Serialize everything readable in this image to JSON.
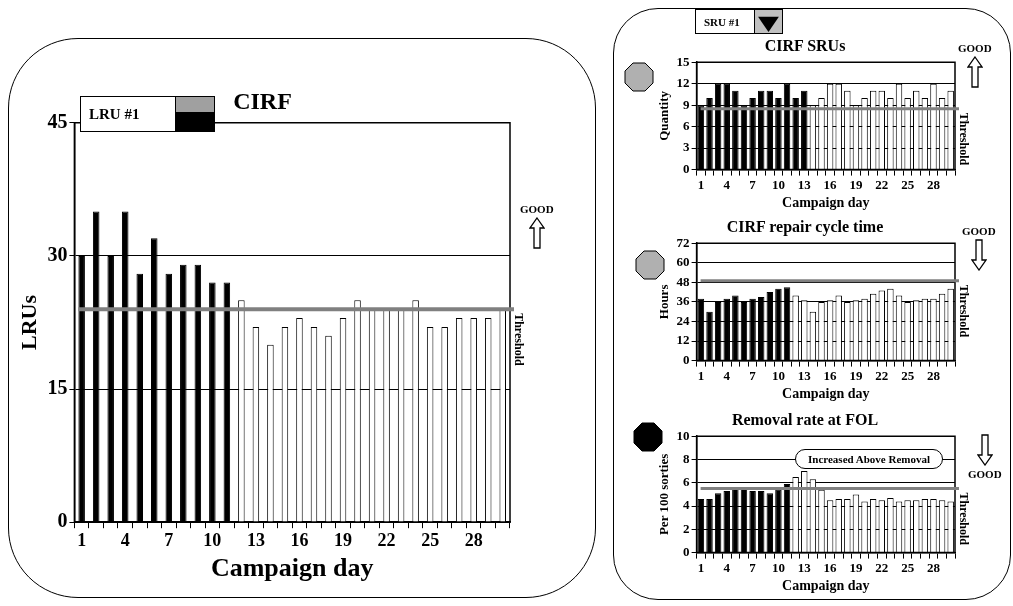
{
  "chart_data": [
    {
      "type": "bar",
      "title": "CIRF",
      "xlabel": "Campaign day",
      "ylabel": "LRUs",
      "annotations": [
        "LRU #1",
        "GOOD"
      ],
      "categories": [
        "1",
        null,
        null,
        "4",
        null,
        null,
        "7",
        null,
        null,
        "10",
        null,
        null,
        "13",
        null,
        null,
        "16",
        null,
        null,
        "19",
        null,
        null,
        "22",
        null,
        null,
        "25",
        null,
        null,
        "28",
        null,
        null
      ],
      "series": [
        {
          "color": "#000000",
          "values": [
            30,
            35,
            30,
            35,
            28,
            32,
            28,
            29,
            29,
            27,
            27,
            null,
            null,
            null,
            null,
            null,
            null,
            null,
            null,
            null,
            null,
            null,
            null,
            null,
            null,
            null,
            null,
            null,
            null,
            null
          ]
        },
        {
          "color": "#ffffff",
          "values": [
            null,
            null,
            null,
            null,
            null,
            null,
            null,
            null,
            null,
            null,
            null,
            25,
            22,
            20,
            22,
            23,
            22,
            21,
            23,
            25,
            24,
            24,
            24,
            25,
            22,
            22,
            23,
            23,
            23,
            24
          ]
        }
      ],
      "ylim": [
        0,
        45
      ],
      "yticks": [
        0,
        15,
        30,
        45
      ],
      "grid": "y",
      "ref_lines": [
        {
          "axis": "y",
          "value": 24,
          "label": "Threshold",
          "color": "#808080"
        }
      ]
    },
    {
      "type": "bar",
      "title": "CIRF SRUs",
      "xlabel": "Campaign day",
      "ylabel": "Quantity",
      "annotations": [
        "SRU #1",
        "GOOD"
      ],
      "categories": [
        "1",
        null,
        null,
        "4",
        null,
        null,
        "7",
        null,
        null,
        "10",
        null,
        null,
        "13",
        null,
        null,
        "16",
        null,
        null,
        "19",
        null,
        null,
        "22",
        null,
        null,
        "25",
        null,
        null,
        "28",
        null,
        null
      ],
      "series": [
        {
          "color": "#000000",
          "values": [
            9,
            10,
            12,
            12,
            11,
            9,
            10,
            11,
            11,
            10,
            12,
            10,
            11,
            null,
            null,
            null,
            null,
            null,
            null,
            null,
            null,
            null,
            null,
            null,
            null,
            null,
            null,
            null,
            null,
            null
          ]
        },
        {
          "color": "#ffffff",
          "values": [
            null,
            null,
            null,
            null,
            null,
            null,
            null,
            null,
            null,
            null,
            null,
            null,
            null,
            9,
            10,
            12,
            12,
            11,
            9,
            10,
            11,
            11,
            10,
            12,
            10,
            11,
            10,
            12,
            10,
            11
          ]
        }
      ],
      "ylim": [
        0,
        15
      ],
      "yticks": [
        0,
        3,
        6,
        9,
        12,
        15
      ],
      "grid": "y",
      "ref_lines": [
        {
          "axis": "y",
          "value": 8.5,
          "label": "Threshold",
          "color": "#808080"
        }
      ]
    },
    {
      "type": "bar",
      "title": "CIRF repair cycle time",
      "xlabel": "Campaign day",
      "ylabel": "Hours",
      "annotations": [
        "GOOD"
      ],
      "categories": [
        "1",
        null,
        null,
        "4",
        null,
        null,
        "7",
        null,
        null,
        "10",
        null,
        null,
        "13",
        null,
        null,
        "16",
        null,
        null,
        "19",
        null,
        null,
        "22",
        null,
        null,
        "25",
        null,
        null,
        "28",
        null,
        null
      ],
      "series": [
        {
          "color": "#000000",
          "values": [
            38,
            30,
            36,
            38,
            40,
            36,
            38,
            39,
            42,
            44,
            45,
            null,
            null,
            null,
            null,
            null,
            null,
            null,
            null,
            null,
            null,
            null,
            null,
            null,
            null,
            null,
            null,
            null,
            null,
            null
          ]
        },
        {
          "color": "#ffffff",
          "values": [
            null,
            null,
            null,
            null,
            null,
            null,
            null,
            null,
            null,
            null,
            null,
            40,
            37,
            30,
            36,
            37,
            40,
            36,
            37,
            38,
            41,
            43,
            44,
            40,
            36,
            37,
            38,
            38,
            41,
            44
          ]
        }
      ],
      "ylim": [
        0,
        72
      ],
      "yticks": [
        0,
        12,
        24,
        36,
        48,
        60,
        72
      ],
      "grid": "y",
      "ref_lines": [
        {
          "axis": "y",
          "value": 49,
          "label": "Threshold",
          "color": "#808080"
        }
      ]
    },
    {
      "type": "bar",
      "title": "Removal rate at FOL",
      "xlabel": "Campaign day",
      "ylabel": "Per 100 sorties",
      "annotations": [
        "Increased Above Removal",
        "GOOD"
      ],
      "categories": [
        "1",
        null,
        null,
        "4",
        null,
        null,
        "7",
        null,
        null,
        "10",
        null,
        null,
        "13",
        null,
        null,
        "16",
        null,
        null,
        "19",
        null,
        null,
        "22",
        null,
        null,
        "25",
        null,
        null,
        "28",
        null,
        null
      ],
      "series": [
        {
          "color": "#000000",
          "values": [
            4.6,
            4.6,
            5.1,
            5.3,
            5.5,
            5.6,
            5.3,
            5.3,
            5.1,
            5.4,
            5.9,
            null,
            null,
            null,
            null,
            null,
            null,
            null,
            null,
            null,
            null,
            null,
            null,
            null,
            null,
            null,
            null,
            null,
            null,
            null
          ]
        },
        {
          "color": "#ffffff",
          "values": [
            null,
            null,
            null,
            null,
            null,
            null,
            null,
            null,
            null,
            null,
            null,
            6.5,
            7,
            6.3,
            5.4,
            4.5,
            4.6,
            4.6,
            5,
            4.4,
            4.6,
            4.5,
            4.7,
            4.4,
            4.5,
            4.5,
            4.6,
            4.6,
            4.5,
            4.4
          ]
        }
      ],
      "ylim": [
        0,
        10
      ],
      "yticks": [
        0,
        2,
        4,
        6,
        8,
        10
      ],
      "grid": "y",
      "ref_lines": [
        {
          "axis": "y",
          "value": 5.5,
          "label": "Threshold",
          "color": "#808080"
        }
      ]
    }
  ]
}
